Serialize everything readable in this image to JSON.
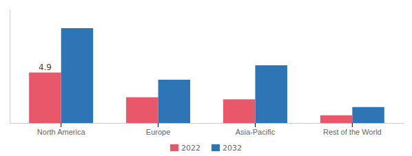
{
  "chart_data": {
    "type": "bar",
    "categories": [
      "North America",
      "Europe",
      "Asia-Pacific",
      "Rest of the World"
    ],
    "series": [
      {
        "name": "2022",
        "color": "#e8586a",
        "values": [
          4.9,
          2.5,
          2.3,
          0.75
        ]
      },
      {
        "name": "2032",
        "color": "#2e75b6",
        "values": [
          9.2,
          4.2,
          5.6,
          1.55
        ]
      }
    ],
    "ylim": [
      0,
      11
    ],
    "annotations": [
      {
        "text": "4.9",
        "x": "North America",
        "y": 4.9
      }
    ],
    "legend": "bottom",
    "grid": false,
    "tick_labels": "x"
  }
}
